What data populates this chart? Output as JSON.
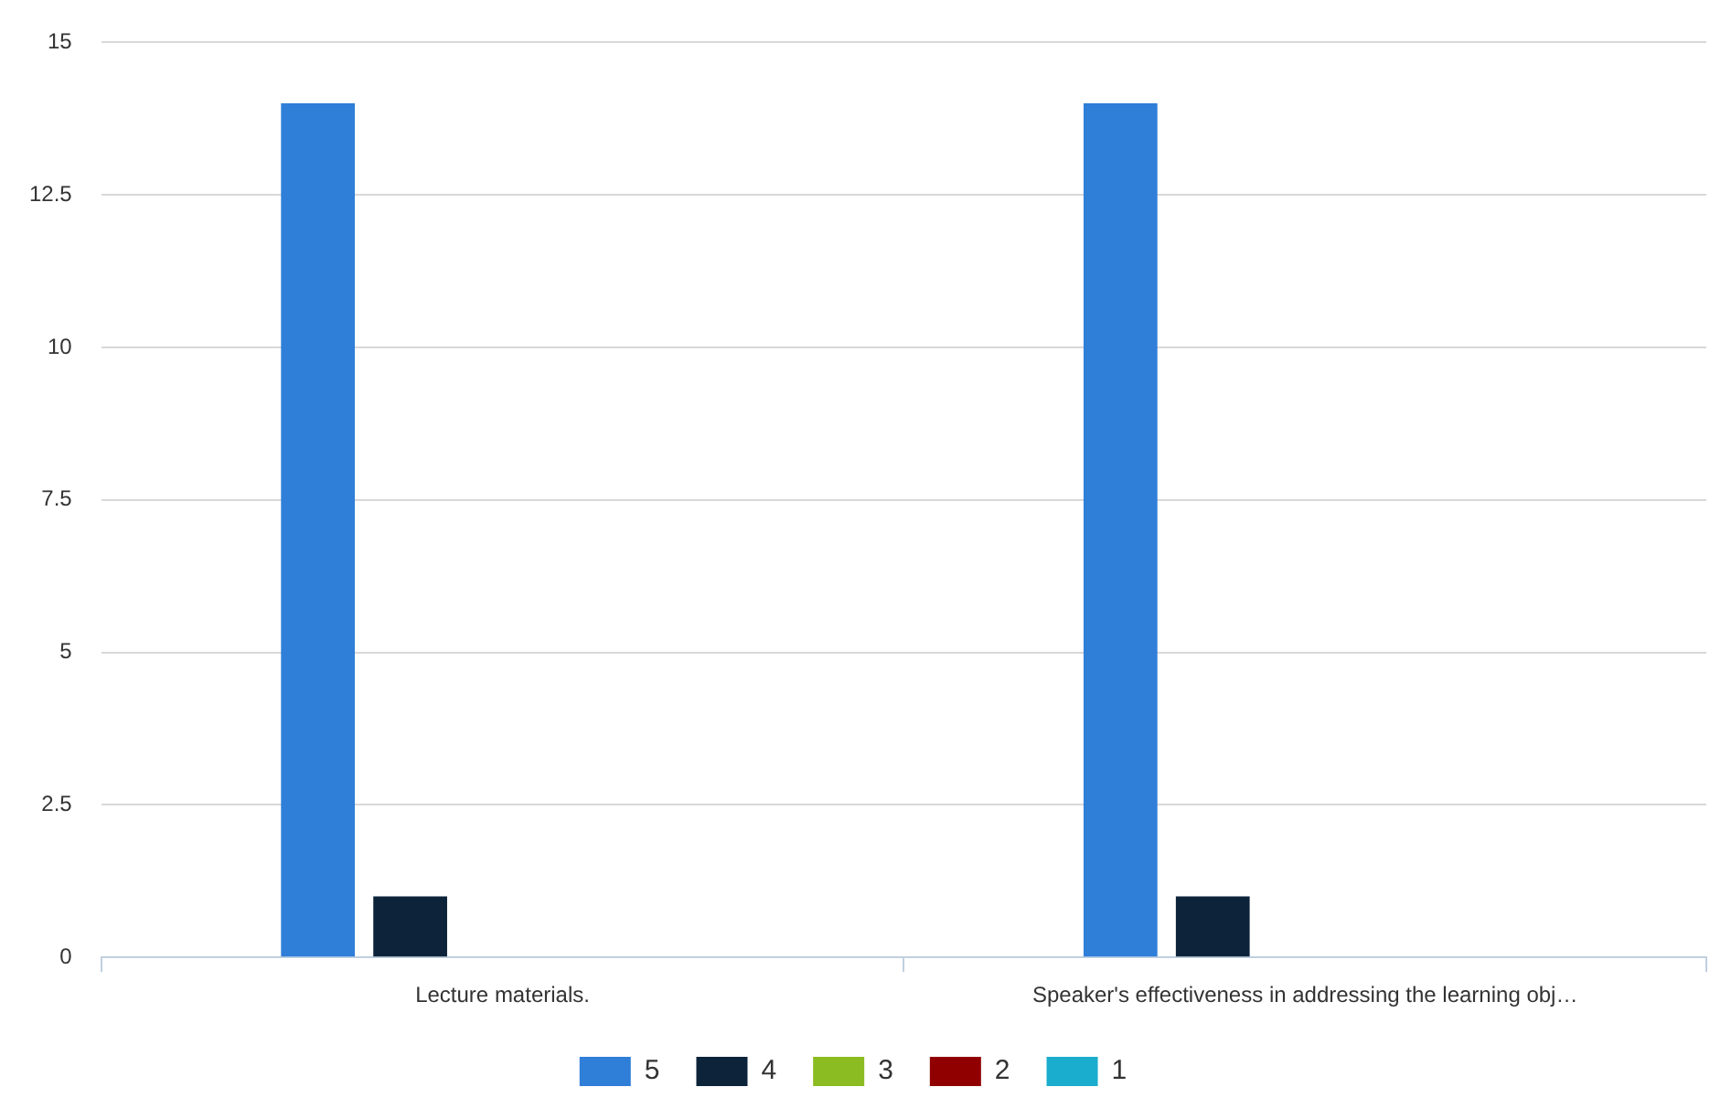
{
  "chart_data": {
    "type": "bar",
    "categories": [
      "Lecture materials.",
      "Speaker's effectiveness in addressing the learning obj…"
    ],
    "series": [
      {
        "name": "5",
        "color": "#2f7ed8",
        "values": [
          14,
          14
        ]
      },
      {
        "name": "4",
        "color": "#0d233a",
        "values": [
          1,
          1
        ]
      },
      {
        "name": "3",
        "color": "#8bbc21",
        "values": [
          0,
          0
        ]
      },
      {
        "name": "2",
        "color": "#910000",
        "values": [
          0,
          0
        ]
      },
      {
        "name": "1",
        "color": "#1aadce",
        "values": [
          0,
          0
        ]
      }
    ],
    "ylim": [
      0,
      15
    ],
    "yticks": [
      0,
      2.5,
      5,
      7.5,
      10,
      12.5,
      15
    ],
    "grid": "y",
    "legend": "bottom"
  }
}
